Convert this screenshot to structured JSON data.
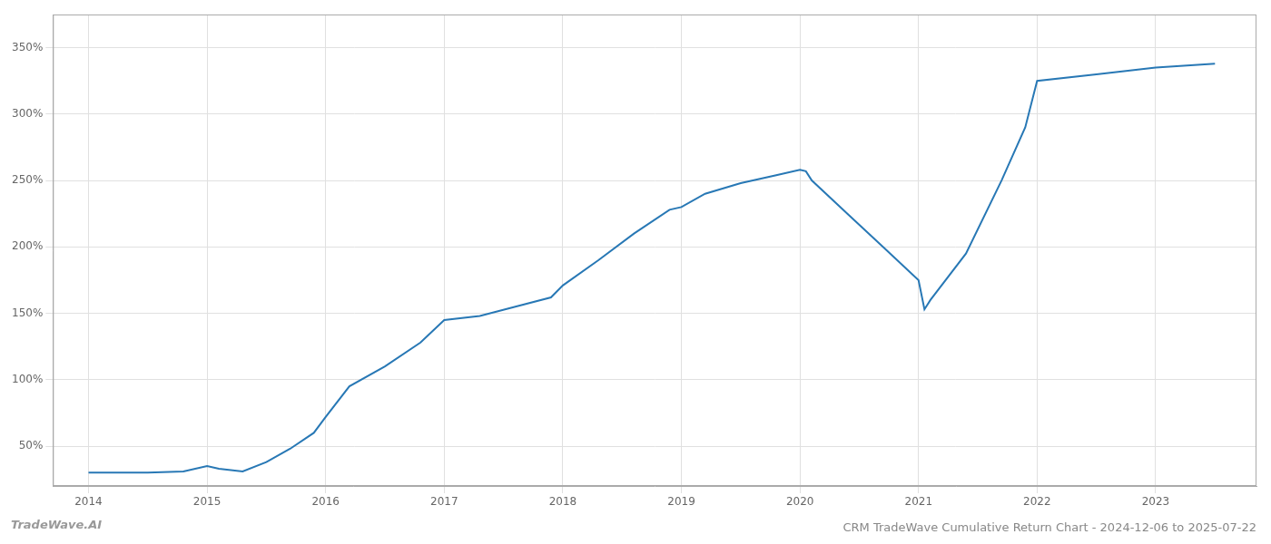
{
  "chart_data": {
    "type": "line",
    "title": "CRM TradeWave Cumulative Return Chart - 2024-12-06 to 2025-07-22",
    "annotations": [
      "TradeWave.AI"
    ],
    "color": "#2878b5",
    "x": [
      2014.0,
      2014.1,
      2014.5,
      2014.8,
      2015.0,
      2015.1,
      2015.3,
      2015.5,
      2015.7,
      2015.9,
      2016.0,
      2016.2,
      2016.5,
      2016.8,
      2017.0,
      2017.3,
      2017.6,
      2017.9,
      2018.0,
      2018.3,
      2018.6,
      2018.9,
      2019.0,
      2019.2,
      2019.5,
      2019.8,
      2020.0,
      2020.05,
      2020.1,
      2020.4,
      2020.7,
      2021.0,
      2021.05,
      2021.1,
      2021.4,
      2021.7,
      2021.9,
      2022.0,
      2022.5,
      2023.0,
      2023.5
    ],
    "values": [
      30,
      30,
      30,
      31,
      35,
      33,
      31,
      38,
      48,
      60,
      72,
      95,
      110,
      128,
      145,
      148,
      155,
      162,
      171,
      190,
      210,
      228,
      230,
      240,
      248,
      254,
      258,
      257,
      250,
      225,
      200,
      175,
      153,
      160,
      195,
      250,
      290,
      325,
      330,
      335,
      338
    ],
    "xlim": [
      2013.7,
      2023.85
    ],
    "xticks": [
      2014,
      2015,
      2016,
      2017,
      2018,
      2019,
      2020,
      2021,
      2022,
      2023
    ],
    "ylim": [
      20,
      375
    ],
    "yticks": [
      {
        "value": 50,
        "label": "50%"
      },
      {
        "value": 100,
        "label": "100%"
      },
      {
        "value": 150,
        "label": "150%"
      },
      {
        "value": 200,
        "label": "200%"
      },
      {
        "value": 250,
        "label": "250%"
      },
      {
        "value": 300,
        "label": "300%"
      },
      {
        "value": 350,
        "label": "350%"
      }
    ],
    "grid": true
  }
}
